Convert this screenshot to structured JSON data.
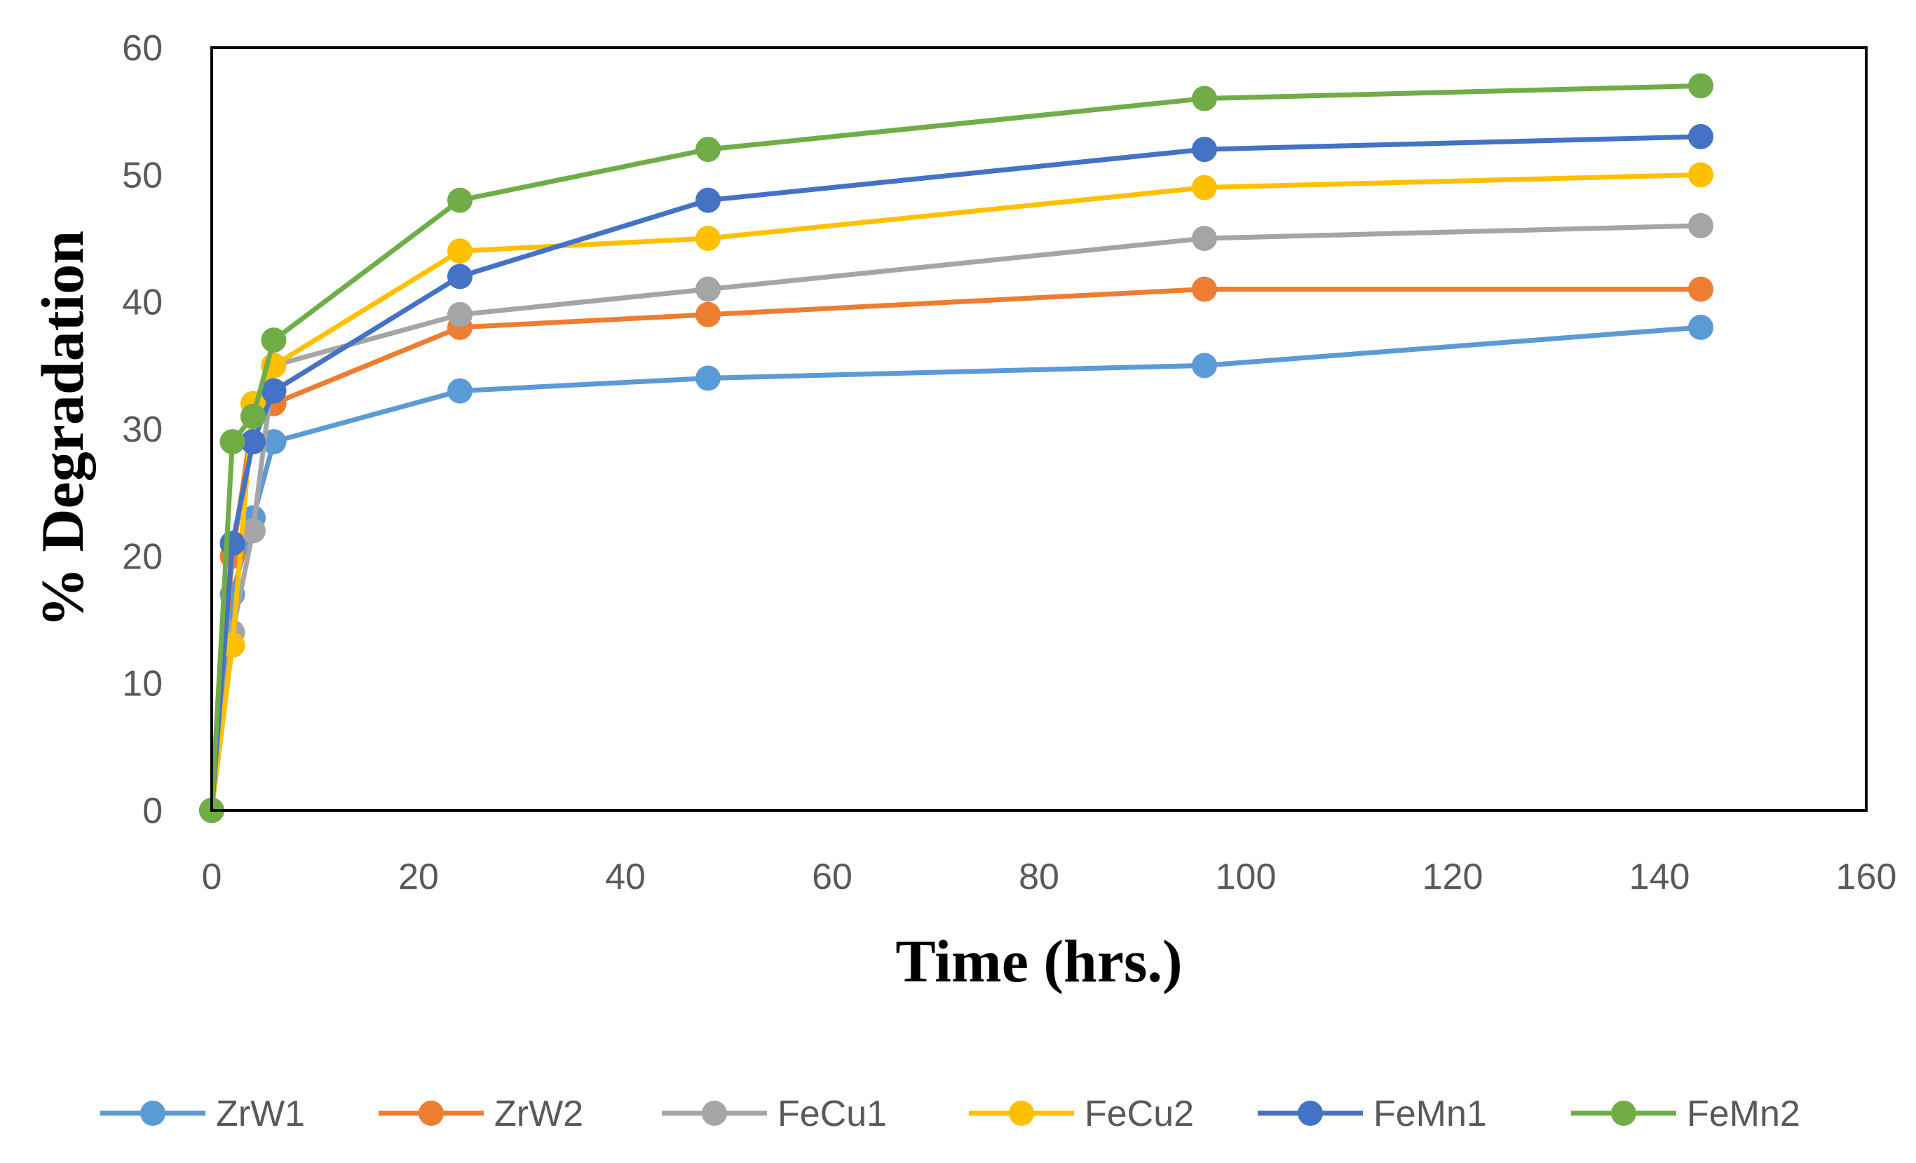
{
  "chart_data": {
    "type": "line",
    "title": "",
    "xlabel": "Time (hrs.)",
    "ylabel": "% Degradation",
    "xlim": [
      0,
      160
    ],
    "ylim": [
      0,
      60
    ],
    "xticks": [
      0,
      20,
      40,
      60,
      80,
      100,
      120,
      140,
      160
    ],
    "yticks": [
      0,
      10,
      20,
      30,
      40,
      50,
      60
    ],
    "grid": false,
    "legend_position": "bottom",
    "x": [
      0,
      2,
      4,
      6,
      24,
      48,
      96,
      144
    ],
    "series": [
      {
        "name": "ZrW1",
        "color": "#5B9BD5",
        "values": [
          0,
          17,
          23,
          29,
          33,
          34,
          35,
          38
        ]
      },
      {
        "name": "ZrW2",
        "color": "#ED7D31",
        "values": [
          0,
          20,
          31,
          32,
          38,
          39,
          41,
          41
        ]
      },
      {
        "name": "FeCu1",
        "color": "#A5A5A5",
        "values": [
          0,
          14,
          22,
          35,
          39,
          41,
          45,
          46
        ]
      },
      {
        "name": "FeCu2",
        "color": "#FFC000",
        "values": [
          0,
          13,
          32,
          35,
          44,
          45,
          49,
          50
        ]
      },
      {
        "name": "FeMn1",
        "color": "#4472C4",
        "values": [
          0,
          21,
          29,
          33,
          42,
          48,
          52,
          53
        ]
      },
      {
        "name": "FeMn2",
        "color": "#70AD47",
        "values": [
          0,
          29,
          31,
          37,
          48,
          52,
          56,
          57
        ]
      }
    ]
  }
}
